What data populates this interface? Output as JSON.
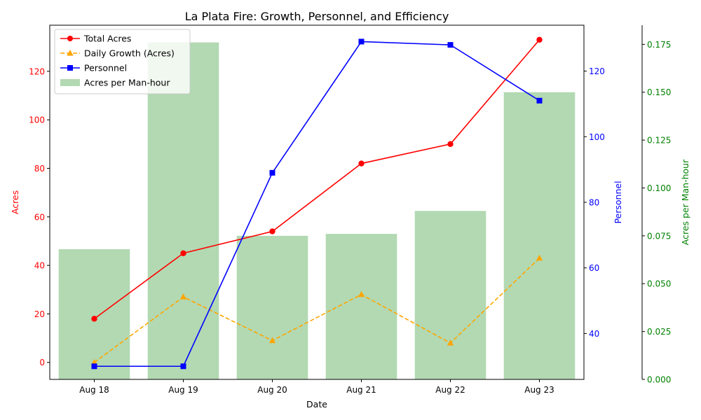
{
  "chart_data": {
    "type": "bar+line",
    "title": "La Plata Fire: Growth, Personnel, and Efficiency",
    "xlabel": "Date",
    "categories": [
      "Aug 18",
      "Aug 19",
      "Aug 20",
      "Aug 21",
      "Aug 22",
      "Aug 23"
    ],
    "axes": {
      "left": {
        "label": "Acres",
        "color": "#ff0000",
        "ylim": [
          -7,
          139
        ],
        "ticks": [
          0,
          20,
          40,
          60,
          80,
          100,
          120
        ],
        "tick_labels": [
          "0",
          "20",
          "40",
          "60",
          "80",
          "100",
          "120"
        ]
      },
      "right1": {
        "label": "Personnel",
        "color": "#0000ff",
        "ylim": [
          26,
          134
        ],
        "ticks": [
          40,
          60,
          80,
          100,
          120
        ],
        "tick_labels": [
          "40",
          "60",
          "80",
          "100",
          "120"
        ]
      },
      "right2": {
        "label": "Acres per Man-hour",
        "color": "#008000",
        "ylim": [
          0,
          0.185
        ],
        "ticks": [
          0,
          0.025,
          0.05,
          0.075,
          0.1,
          0.125,
          0.15,
          0.175
        ],
        "tick_labels": [
          "0.000",
          "0.025",
          "0.050",
          "0.075",
          "0.100",
          "0.125",
          "0.150",
          "0.175"
        ]
      }
    },
    "series": [
      {
        "name": "Total Acres",
        "kind": "line",
        "axis": "left",
        "color": "#ff0000",
        "marker": "circle",
        "line_style": "solid",
        "values": [
          18,
          45,
          54,
          82,
          90,
          133
        ]
      },
      {
        "name": "Daily Growth (Acres)",
        "kind": "line",
        "axis": "left",
        "color": "#ffa500",
        "marker": "triangle",
        "line_style": "dashed",
        "values": [
          0,
          27,
          9,
          28,
          8,
          43
        ]
      },
      {
        "name": "Personnel",
        "kind": "line",
        "axis": "right1",
        "color": "#0000ff",
        "marker": "square",
        "line_style": "solid",
        "values": [
          30,
          30,
          89,
          129,
          128,
          111
        ]
      },
      {
        "name": "Acres per Man-hour",
        "kind": "bar",
        "axis": "right2",
        "color": "#008000",
        "opacity": 0.3,
        "values": [
          0.068,
          0.176,
          0.075,
          0.076,
          0.088,
          0.15
        ]
      }
    ],
    "legend_position": "top-left",
    "grid": false
  }
}
